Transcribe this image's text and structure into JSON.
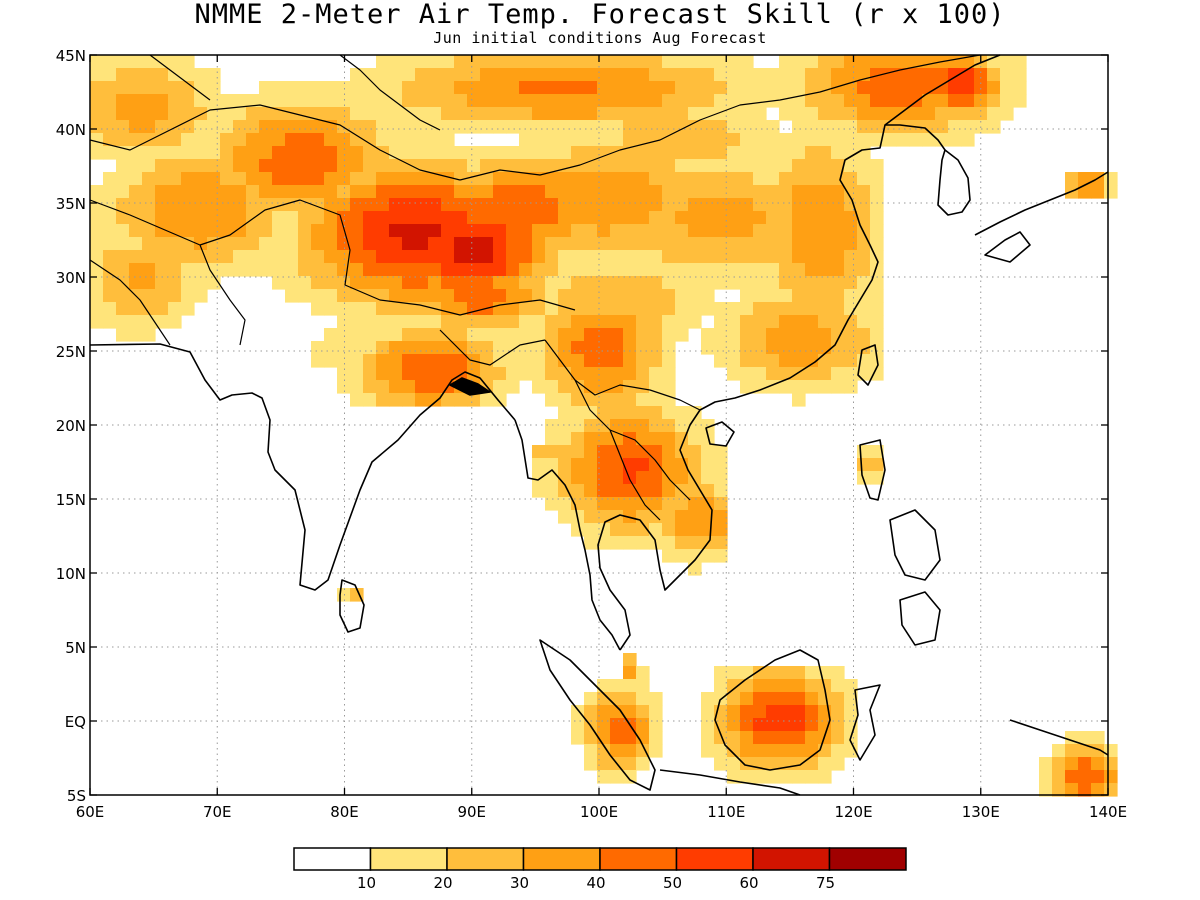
{
  "title": "NMME 2-Meter Air Temp. Forecast Skill (r x 100)",
  "subtitle": "Jun initial conditions  Aug Forecast",
  "map": {
    "lon_range": [
      60,
      140
    ],
    "lat_range": [
      -5,
      45
    ],
    "lon_ticks": [
      "60E",
      "70E",
      "80E",
      "90E",
      "100E",
      "110E",
      "120E",
      "130E",
      "140E"
    ],
    "lat_ticks": [
      "45N",
      "40N",
      "35N",
      "30N",
      "25N",
      "20N",
      "15N",
      "10N",
      "5N",
      "EQ",
      "5S"
    ],
    "grid": "dotted",
    "region": "South and East Asia"
  },
  "colorbar": {
    "colors": [
      "#ffffff",
      "#ffe47a",
      "#ffbe3c",
      "#ffa014",
      "#ff6a00",
      "#ff3c00",
      "#d21400",
      "#a00000"
    ],
    "labels": [
      "10",
      "20",
      "30",
      "40",
      "50",
      "60",
      "75"
    ]
  }
}
